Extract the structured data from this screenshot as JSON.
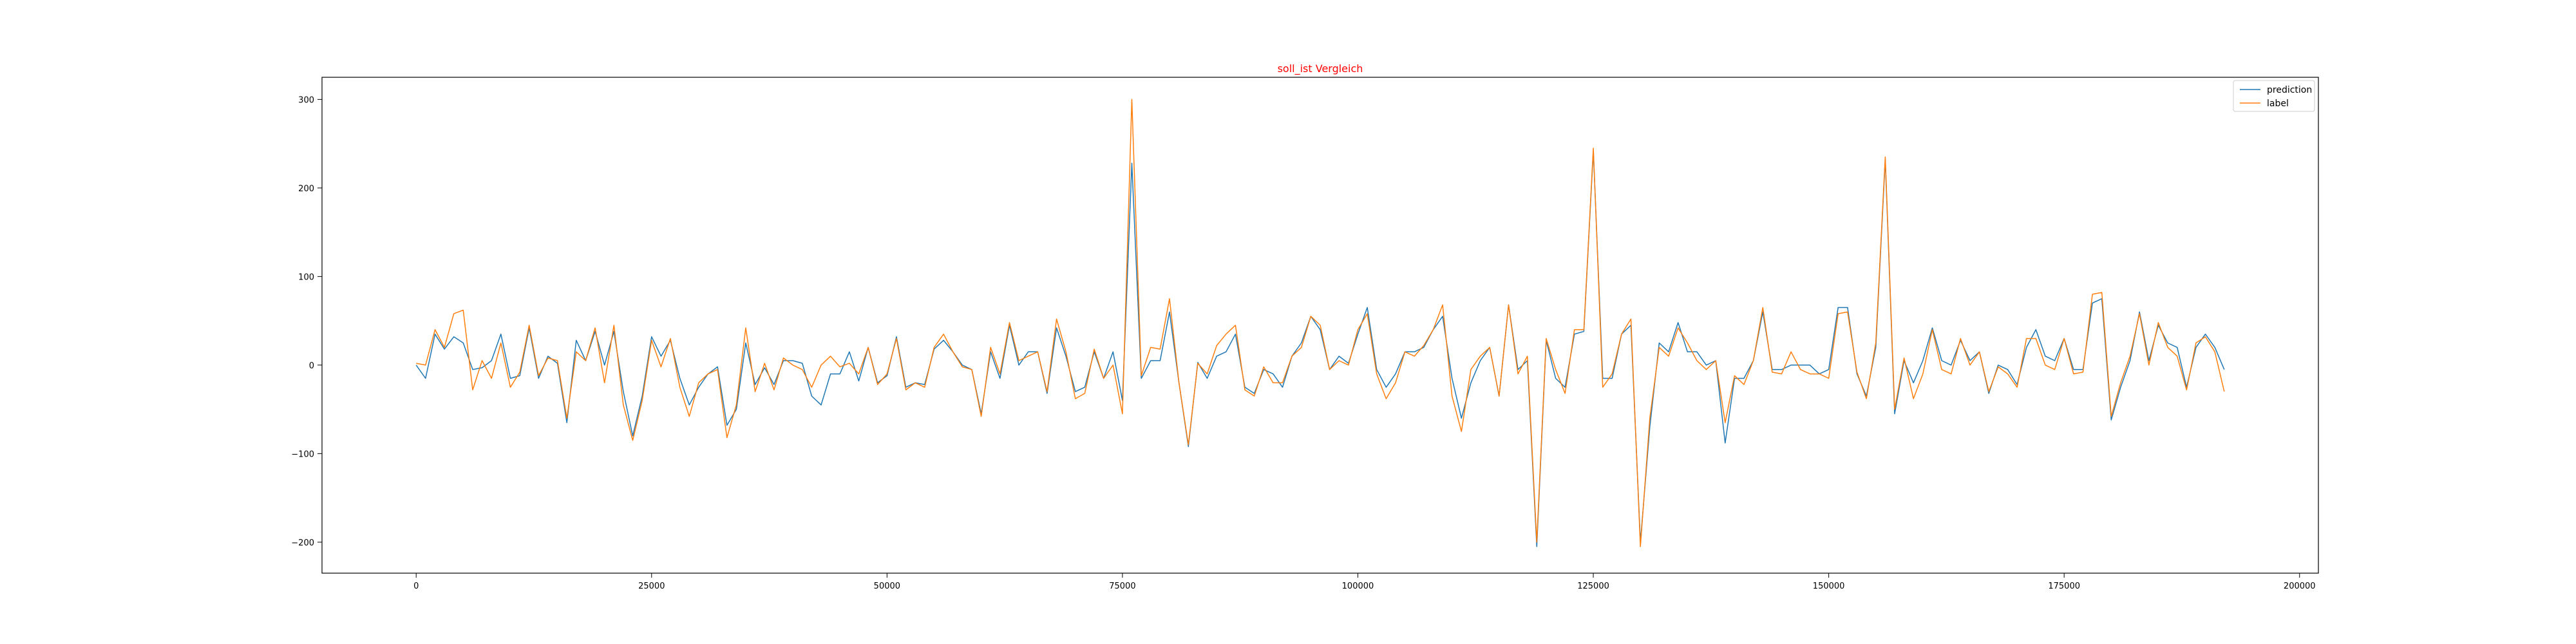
{
  "chart_data": {
    "type": "line",
    "title": "soll_ist Vergleich",
    "title_color": "#ff0000",
    "xlabel": "",
    "ylabel": "",
    "xlim": [
      -10000,
      202000
    ],
    "ylim": [
      -235,
      325
    ],
    "x_ticks": [
      0,
      25000,
      50000,
      75000,
      100000,
      125000,
      150000,
      175000,
      200000
    ],
    "y_ticks": [
      -200,
      -100,
      0,
      100,
      200,
      300
    ],
    "grid": false,
    "legend_position": "top-right",
    "series": [
      {
        "name": "prediction",
        "color": "#1f77b4",
        "x": [
          0,
          1000,
          2000,
          3000,
          4000,
          5000,
          6000,
          7000,
          8000,
          9000,
          10000,
          11000,
          12000,
          13000,
          14000,
          15000,
          16000,
          17000,
          18000,
          19000,
          20000,
          21000,
          22000,
          23000,
          24000,
          25000,
          26000,
          27000,
          28000,
          29000,
          30000,
          31000,
          32000,
          33000,
          34000,
          35000,
          36000,
          37000,
          38000,
          39000,
          40000,
          41000,
          42000,
          43000,
          44000,
          45000,
          46000,
          47000,
          48000,
          49000,
          50000,
          51000,
          52000,
          53000,
          54000,
          55000,
          56000,
          57000,
          58000,
          59000,
          60000,
          61000,
          62000,
          63000,
          64000,
          65000,
          66000,
          67000,
          68000,
          69000,
          70000,
          71000,
          72000,
          73000,
          74000,
          75000,
          76000,
          77000,
          78000,
          79000,
          80000,
          81000,
          82000,
          83000,
          84000,
          85000,
          86000,
          87000,
          88000,
          89000,
          90000,
          91000,
          92000,
          93000,
          94000,
          95000,
          96000,
          97000,
          98000,
          99000,
          100000,
          101000,
          102000,
          103000,
          104000,
          105000,
          106000,
          107000,
          108000,
          109000,
          110000,
          111000,
          112000,
          113000,
          114000,
          115000,
          116000,
          117000,
          118000,
          119000,
          120000,
          121000,
          122000,
          123000,
          124000,
          125000,
          126000,
          127000,
          128000,
          129000,
          130000,
          131000,
          132000,
          133000,
          134000,
          135000,
          136000,
          137000,
          138000,
          139000,
          140000,
          141000,
          142000,
          143000,
          144000,
          145000,
          146000,
          147000,
          148000,
          149000,
          150000,
          151000,
          152000,
          153000,
          154000,
          155000,
          156000,
          157000,
          158000,
          159000,
          160000,
          161000,
          162000,
          163000,
          164000,
          165000,
          166000,
          167000,
          168000,
          169000,
          170000,
          171000,
          172000,
          173000,
          174000,
          175000,
          176000,
          177000,
          178000,
          179000,
          180000,
          181000,
          182000,
          183000,
          184000,
          185000,
          186000,
          187000,
          188000,
          189000,
          190000,
          191000,
          192000
        ],
        "values": [
          0,
          -15,
          35,
          18,
          32,
          25,
          -5,
          -3,
          5,
          35,
          -15,
          -12,
          42,
          -15,
          10,
          2,
          -65,
          28,
          5,
          38,
          0,
          38,
          -30,
          -80,
          -35,
          32,
          10,
          28,
          -15,
          -45,
          -25,
          -10,
          -2,
          -68,
          -50,
          25,
          -22,
          -3,
          -22,
          5,
          5,
          2,
          -35,
          -45,
          -10,
          -10,
          15,
          -18,
          20,
          -20,
          -12,
          32,
          -25,
          -20,
          -22,
          18,
          28,
          15,
          0,
          -5,
          -55,
          15,
          -15,
          45,
          0,
          15,
          15,
          -32,
          42,
          10,
          -30,
          -25,
          15,
          -15,
          15,
          -40,
          228,
          -15,
          5,
          5,
          60,
          -20,
          -92,
          3,
          -15,
          10,
          15,
          35,
          -25,
          -32,
          -5,
          -10,
          -25,
          10,
          25,
          55,
          40,
          -5,
          10,
          2,
          35,
          65,
          -5,
          -25,
          -10,
          15,
          15,
          20,
          40,
          55,
          -15,
          -60,
          -20,
          5,
          20,
          -35,
          68,
          -5,
          5,
          -205,
          28,
          -15,
          -25,
          35,
          38,
          242,
          -15,
          -15,
          35,
          45,
          -200,
          -70,
          25,
          15,
          48,
          15,
          15,
          0,
          5,
          -88,
          -15,
          -15,
          5,
          60,
          -5,
          -5,
          0,
          0,
          0,
          -10,
          -5,
          65,
          65,
          -10,
          -35,
          20,
          232,
          -55,
          5,
          -20,
          5,
          42,
          5,
          0,
          28,
          5,
          15,
          -32,
          0,
          -5,
          -22,
          20,
          40,
          10,
          5,
          30,
          -5,
          -5,
          70,
          75,
          -62,
          -25,
          5,
          60,
          5,
          45,
          25,
          20,
          -25,
          20,
          35,
          20,
          -5
        ]
      },
      {
        "name": "label",
        "color": "#ff7f0e",
        "x": [
          0,
          1000,
          2000,
          3000,
          4000,
          5000,
          6000,
          7000,
          8000,
          9000,
          10000,
          11000,
          12000,
          13000,
          14000,
          15000,
          16000,
          17000,
          18000,
          19000,
          20000,
          21000,
          22000,
          23000,
          24000,
          25000,
          26000,
          27000,
          28000,
          29000,
          30000,
          31000,
          32000,
          33000,
          34000,
          35000,
          36000,
          37000,
          38000,
          39000,
          40000,
          41000,
          42000,
          43000,
          44000,
          45000,
          46000,
          47000,
          48000,
          49000,
          50000,
          51000,
          52000,
          53000,
          54000,
          55000,
          56000,
          57000,
          58000,
          59000,
          60000,
          61000,
          62000,
          63000,
          64000,
          65000,
          66000,
          67000,
          68000,
          69000,
          70000,
          71000,
          72000,
          73000,
          74000,
          75000,
          76000,
          77000,
          78000,
          79000,
          80000,
          81000,
          82000,
          83000,
          84000,
          85000,
          86000,
          87000,
          88000,
          89000,
          90000,
          91000,
          92000,
          93000,
          94000,
          95000,
          96000,
          97000,
          98000,
          99000,
          100000,
          101000,
          102000,
          103000,
          104000,
          105000,
          106000,
          107000,
          108000,
          109000,
          110000,
          111000,
          112000,
          113000,
          114000,
          115000,
          116000,
          117000,
          118000,
          119000,
          120000,
          121000,
          122000,
          123000,
          124000,
          125000,
          126000,
          127000,
          128000,
          129000,
          130000,
          131000,
          132000,
          133000,
          134000,
          135000,
          136000,
          137000,
          138000,
          139000,
          140000,
          141000,
          142000,
          143000,
          144000,
          145000,
          146000,
          147000,
          148000,
          149000,
          150000,
          151000,
          152000,
          153000,
          154000,
          155000,
          156000,
          157000,
          158000,
          159000,
          160000,
          161000,
          162000,
          163000,
          164000,
          165000,
          166000,
          167000,
          168000,
          169000,
          170000,
          171000,
          172000,
          173000,
          174000,
          175000,
          176000,
          177000,
          178000,
          179000,
          180000,
          181000,
          182000,
          183000,
          184000,
          185000,
          186000,
          187000,
          188000,
          189000,
          190000,
          191000,
          192000
        ],
        "values": [
          2,
          0,
          40,
          20,
          58,
          62,
          -28,
          5,
          -15,
          25,
          -25,
          -8,
          45,
          -12,
          8,
          5,
          -60,
          15,
          5,
          42,
          -20,
          45,
          -45,
          -85,
          -40,
          28,
          -2,
          30,
          -25,
          -58,
          -20,
          -10,
          -5,
          -82,
          -45,
          42,
          -30,
          2,
          -28,
          8,
          0,
          -5,
          -25,
          0,
          10,
          -2,
          2,
          -10,
          20,
          -22,
          -10,
          30,
          -28,
          -20,
          -25,
          20,
          35,
          15,
          -2,
          -5,
          -58,
          20,
          -10,
          48,
          5,
          10,
          15,
          -30,
          52,
          15,
          -38,
          -32,
          18,
          -15,
          0,
          -55,
          300,
          -12,
          20,
          18,
          75,
          -20,
          -90,
          2,
          -10,
          22,
          35,
          45,
          -28,
          -35,
          -2,
          -20,
          -20,
          10,
          20,
          55,
          45,
          -5,
          5,
          0,
          40,
          58,
          -10,
          -38,
          -20,
          15,
          10,
          22,
          40,
          68,
          -35,
          -75,
          -5,
          10,
          20,
          -35,
          68,
          -10,
          10,
          -200,
          30,
          -5,
          -32,
          40,
          40,
          245,
          -25,
          -10,
          35,
          52,
          -205,
          -60,
          20,
          10,
          42,
          25,
          5,
          -5,
          5,
          -65,
          -12,
          -22,
          5,
          65,
          -8,
          -10,
          15,
          -5,
          -10,
          -10,
          -15,
          58,
          60,
          -8,
          -38,
          25,
          235,
          -50,
          8,
          -38,
          -10,
          40,
          -5,
          -10,
          30,
          0,
          15,
          -30,
          -2,
          -10,
          -25,
          30,
          30,
          0,
          -5,
          30,
          -10,
          -8,
          80,
          82,
          -58,
          -20,
          10,
          58,
          0,
          48,
          20,
          10,
          -28,
          25,
          32,
          15,
          -30
        ]
      }
    ]
  }
}
